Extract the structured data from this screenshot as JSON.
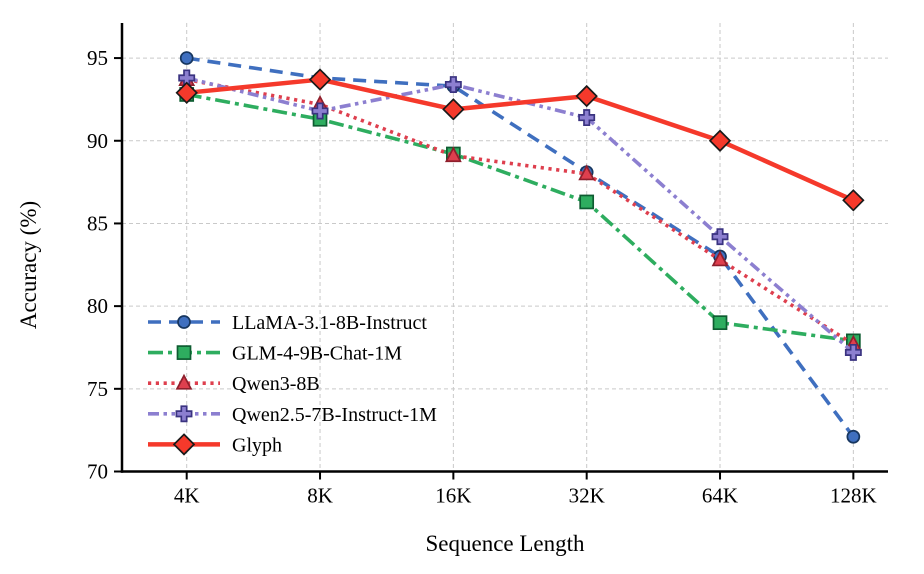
{
  "chart_data": {
    "type": "line",
    "title": "",
    "xlabel": "Sequence Length",
    "ylabel": "Accuracy (%)",
    "categories": [
      "4K",
      "8K",
      "16K",
      "32K",
      "64K",
      "128K"
    ],
    "yticks": [
      70,
      75,
      80,
      85,
      90,
      95
    ],
    "ylim": [
      70,
      97
    ],
    "grid": true,
    "grid_color": "#c9c9c9",
    "axis_color": "#000000",
    "legend_position": "lower-left",
    "series": [
      {
        "name": "LLaMA-3.1-8B-Instruct",
        "values": [
          95.0,
          93.8,
          93.3,
          88.1,
          83.0,
          72.1
        ],
        "color": "#3F6FBF",
        "edge_color": "#17365f",
        "marker": "circle",
        "line_style": "dashed"
      },
      {
        "name": "GLM-4-9B-Chat-1M",
        "values": [
          92.8,
          91.3,
          89.2,
          86.3,
          79.0,
          77.9
        ],
        "color": "#2EAD5F",
        "edge_color": "#0e5c31",
        "marker": "square",
        "line_style": "dashdot"
      },
      {
        "name": "Qwen3-8B",
        "values": [
          93.7,
          92.2,
          89.1,
          88.0,
          82.8,
          77.7
        ],
        "color": "#DE3F4E",
        "edge_color": "#8e1f2c",
        "marker": "triangle",
        "line_style": "dotted"
      },
      {
        "name": "Qwen2.5-7B-Instruct-1M",
        "values": [
          93.8,
          91.8,
          93.4,
          91.4,
          84.2,
          77.2
        ],
        "color": "#8C7FD0",
        "edge_color": "#3a3380",
        "marker": "plus",
        "line_style": "dashdotdot"
      },
      {
        "name": "Glyph",
        "values": [
          92.9,
          93.7,
          91.9,
          92.7,
          90.0,
          86.4
        ],
        "color": "#F5392B",
        "edge_color": "#1a1a1a",
        "marker": "diamond",
        "line_style": "solid"
      }
    ]
  }
}
